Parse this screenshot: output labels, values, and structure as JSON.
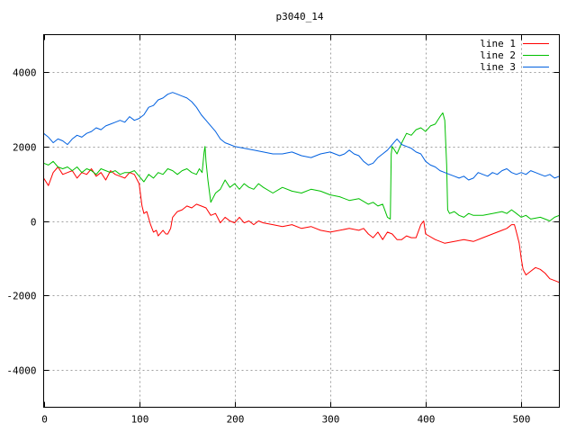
{
  "chart_data": {
    "type": "line",
    "title": "p3040_14",
    "xlabel": "",
    "ylabel": "",
    "xlim": [
      0,
      540
    ],
    "ylim": [
      -5000,
      5000
    ],
    "x_ticks": [
      0,
      100,
      200,
      300,
      400,
      500
    ],
    "y_ticks": [
      -4000,
      -2000,
      0,
      2000,
      4000
    ],
    "x_tick_labels": [
      "0",
      "100",
      "200",
      "300",
      "400",
      "500"
    ],
    "y_tick_labels": [
      "-4000",
      "-2000",
      "0",
      "2000",
      "4000"
    ],
    "grid": true,
    "legend_position": "top-right",
    "series": [
      {
        "name": "line 1",
        "color": "#ff0000",
        "points": [
          [
            0,
            1150
          ],
          [
            5,
            950
          ],
          [
            10,
            1300
          ],
          [
            15,
            1450
          ],
          [
            20,
            1250
          ],
          [
            25,
            1300
          ],
          [
            30,
            1350
          ],
          [
            35,
            1150
          ],
          [
            40,
            1300
          ],
          [
            45,
            1250
          ],
          [
            50,
            1400
          ],
          [
            55,
            1200
          ],
          [
            60,
            1300
          ],
          [
            65,
            1100
          ],
          [
            70,
            1350
          ],
          [
            75,
            1250
          ],
          [
            80,
            1200
          ],
          [
            85,
            1150
          ],
          [
            90,
            1300
          ],
          [
            95,
            1250
          ],
          [
            100,
            1000
          ],
          [
            103,
            400
          ],
          [
            105,
            200
          ],
          [
            108,
            250
          ],
          [
            112,
            -100
          ],
          [
            115,
            -300
          ],
          [
            118,
            -250
          ],
          [
            120,
            -400
          ],
          [
            125,
            -250
          ],
          [
            128,
            -350
          ],
          [
            130,
            -350
          ],
          [
            133,
            -200
          ],
          [
            135,
            100
          ],
          [
            140,
            250
          ],
          [
            145,
            300
          ],
          [
            150,
            400
          ],
          [
            155,
            350
          ],
          [
            160,
            450
          ],
          [
            165,
            400
          ],
          [
            170,
            350
          ],
          [
            175,
            150
          ],
          [
            180,
            200
          ],
          [
            185,
            -50
          ],
          [
            190,
            100
          ],
          [
            195,
            0
          ],
          [
            200,
            -50
          ],
          [
            205,
            100
          ],
          [
            210,
            -50
          ],
          [
            215,
            0
          ],
          [
            220,
            -100
          ],
          [
            225,
            0
          ],
          [
            230,
            -50
          ],
          [
            240,
            -100
          ],
          [
            250,
            -150
          ],
          [
            260,
            -100
          ],
          [
            270,
            -200
          ],
          [
            280,
            -150
          ],
          [
            290,
            -250
          ],
          [
            300,
            -300
          ],
          [
            310,
            -250
          ],
          [
            320,
            -200
          ],
          [
            330,
            -250
          ],
          [
            335,
            -200
          ],
          [
            340,
            -350
          ],
          [
            345,
            -450
          ],
          [
            350,
            -300
          ],
          [
            355,
            -500
          ],
          [
            360,
            -300
          ],
          [
            365,
            -350
          ],
          [
            370,
            -500
          ],
          [
            375,
            -500
          ],
          [
            380,
            -400
          ],
          [
            385,
            -450
          ],
          [
            390,
            -450
          ],
          [
            395,
            -100
          ],
          [
            398,
            0
          ],
          [
            400,
            -350
          ],
          [
            410,
            -500
          ],
          [
            420,
            -600
          ],
          [
            430,
            -550
          ],
          [
            440,
            -500
          ],
          [
            450,
            -550
          ],
          [
            460,
            -450
          ],
          [
            470,
            -350
          ],
          [
            480,
            -250
          ],
          [
            485,
            -200
          ],
          [
            490,
            -100
          ],
          [
            493,
            -100
          ],
          [
            495,
            -300
          ],
          [
            498,
            -600
          ],
          [
            500,
            -1000
          ],
          [
            502,
            -1300
          ],
          [
            505,
            -1450
          ],
          [
            510,
            -1350
          ],
          [
            515,
            -1250
          ],
          [
            520,
            -1300
          ],
          [
            525,
            -1400
          ],
          [
            530,
            -1550
          ],
          [
            535,
            -1600
          ],
          [
            540,
            -1650
          ]
        ]
      },
      {
        "name": "line 2",
        "color": "#00c000",
        "points": [
          [
            0,
            1550
          ],
          [
            5,
            1500
          ],
          [
            10,
            1600
          ],
          [
            15,
            1450
          ],
          [
            20,
            1400
          ],
          [
            25,
            1450
          ],
          [
            30,
            1350
          ],
          [
            35,
            1450
          ],
          [
            40,
            1300
          ],
          [
            45,
            1400
          ],
          [
            50,
            1350
          ],
          [
            55,
            1250
          ],
          [
            60,
            1400
          ],
          [
            65,
            1350
          ],
          [
            70,
            1300
          ],
          [
            75,
            1350
          ],
          [
            80,
            1250
          ],
          [
            85,
            1300
          ],
          [
            90,
            1300
          ],
          [
            95,
            1350
          ],
          [
            100,
            1200
          ],
          [
            105,
            1050
          ],
          [
            110,
            1250
          ],
          [
            115,
            1150
          ],
          [
            120,
            1300
          ],
          [
            125,
            1250
          ],
          [
            130,
            1400
          ],
          [
            135,
            1350
          ],
          [
            140,
            1250
          ],
          [
            145,
            1350
          ],
          [
            150,
            1400
          ],
          [
            155,
            1300
          ],
          [
            160,
            1250
          ],
          [
            163,
            1400
          ],
          [
            166,
            1300
          ],
          [
            168,
            1850
          ],
          [
            169,
            2000
          ],
          [
            170,
            1600
          ],
          [
            172,
            1100
          ],
          [
            175,
            500
          ],
          [
            180,
            750
          ],
          [
            185,
            850
          ],
          [
            190,
            1100
          ],
          [
            195,
            900
          ],
          [
            200,
            1000
          ],
          [
            205,
            850
          ],
          [
            210,
            1000
          ],
          [
            215,
            900
          ],
          [
            220,
            850
          ],
          [
            225,
            1000
          ],
          [
            230,
            900
          ],
          [
            240,
            750
          ],
          [
            250,
            900
          ],
          [
            260,
            800
          ],
          [
            270,
            750
          ],
          [
            280,
            850
          ],
          [
            290,
            800
          ],
          [
            300,
            700
          ],
          [
            310,
            650
          ],
          [
            320,
            550
          ],
          [
            330,
            600
          ],
          [
            340,
            450
          ],
          [
            345,
            500
          ],
          [
            350,
            400
          ],
          [
            355,
            450
          ],
          [
            360,
            100
          ],
          [
            363,
            50
          ],
          [
            364,
            1800
          ],
          [
            365,
            2000
          ],
          [
            370,
            1800
          ],
          [
            375,
            2100
          ],
          [
            380,
            2350
          ],
          [
            385,
            2300
          ],
          [
            390,
            2450
          ],
          [
            395,
            2500
          ],
          [
            400,
            2400
          ],
          [
            405,
            2550
          ],
          [
            410,
            2600
          ],
          [
            415,
            2800
          ],
          [
            418,
            2900
          ],
          [
            420,
            2700
          ],
          [
            422,
            1500
          ],
          [
            423,
            300
          ],
          [
            425,
            200
          ],
          [
            430,
            250
          ],
          [
            435,
            150
          ],
          [
            440,
            100
          ],
          [
            445,
            200
          ],
          [
            450,
            150
          ],
          [
            460,
            150
          ],
          [
            470,
            200
          ],
          [
            480,
            250
          ],
          [
            485,
            200
          ],
          [
            490,
            300
          ],
          [
            495,
            200
          ],
          [
            500,
            100
          ],
          [
            505,
            150
          ],
          [
            510,
            50
          ],
          [
            520,
            100
          ],
          [
            525,
            50
          ],
          [
            530,
            0
          ],
          [
            535,
            100
          ],
          [
            540,
            150
          ]
        ]
      },
      {
        "name": "line 3",
        "color": "#0060e0",
        "points": [
          [
            0,
            2350
          ],
          [
            5,
            2250
          ],
          [
            10,
            2100
          ],
          [
            15,
            2200
          ],
          [
            20,
            2150
          ],
          [
            25,
            2050
          ],
          [
            30,
            2200
          ],
          [
            35,
            2300
          ],
          [
            40,
            2250
          ],
          [
            45,
            2350
          ],
          [
            50,
            2400
          ],
          [
            55,
            2500
          ],
          [
            60,
            2450
          ],
          [
            65,
            2550
          ],
          [
            70,
            2600
          ],
          [
            75,
            2650
          ],
          [
            80,
            2700
          ],
          [
            85,
            2650
          ],
          [
            90,
            2800
          ],
          [
            95,
            2700
          ],
          [
            100,
            2750
          ],
          [
            105,
            2850
          ],
          [
            110,
            3050
          ],
          [
            115,
            3100
          ],
          [
            120,
            3250
          ],
          [
            125,
            3300
          ],
          [
            130,
            3400
          ],
          [
            135,
            3450
          ],
          [
            140,
            3400
          ],
          [
            145,
            3350
          ],
          [
            150,
            3300
          ],
          [
            155,
            3200
          ],
          [
            160,
            3050
          ],
          [
            165,
            2850
          ],
          [
            170,
            2700
          ],
          [
            175,
            2550
          ],
          [
            180,
            2400
          ],
          [
            185,
            2200
          ],
          [
            190,
            2100
          ],
          [
            195,
            2050
          ],
          [
            200,
            2000
          ],
          [
            210,
            1950
          ],
          [
            220,
            1900
          ],
          [
            230,
            1850
          ],
          [
            240,
            1800
          ],
          [
            250,
            1800
          ],
          [
            260,
            1850
          ],
          [
            270,
            1750
          ],
          [
            280,
            1700
          ],
          [
            290,
            1800
          ],
          [
            300,
            1850
          ],
          [
            310,
            1750
          ],
          [
            315,
            1800
          ],
          [
            320,
            1900
          ],
          [
            325,
            1800
          ],
          [
            330,
            1750
          ],
          [
            335,
            1600
          ],
          [
            340,
            1500
          ],
          [
            345,
            1550
          ],
          [
            350,
            1700
          ],
          [
            355,
            1800
          ],
          [
            360,
            1900
          ],
          [
            365,
            2050
          ],
          [
            370,
            2200
          ],
          [
            375,
            2050
          ],
          [
            380,
            2000
          ],
          [
            385,
            1950
          ],
          [
            390,
            1850
          ],
          [
            395,
            1800
          ],
          [
            400,
            1600
          ],
          [
            405,
            1500
          ],
          [
            410,
            1450
          ],
          [
            415,
            1350
          ],
          [
            420,
            1300
          ],
          [
            425,
            1250
          ],
          [
            430,
            1200
          ],
          [
            435,
            1150
          ],
          [
            440,
            1200
          ],
          [
            445,
            1100
          ],
          [
            450,
            1150
          ],
          [
            455,
            1300
          ],
          [
            460,
            1250
          ],
          [
            465,
            1200
          ],
          [
            470,
            1300
          ],
          [
            475,
            1250
          ],
          [
            480,
            1350
          ],
          [
            485,
            1400
          ],
          [
            490,
            1300
          ],
          [
            495,
            1250
          ],
          [
            500,
            1300
          ],
          [
            505,
            1250
          ],
          [
            510,
            1350
          ],
          [
            515,
            1300
          ],
          [
            520,
            1250
          ],
          [
            525,
            1200
          ],
          [
            530,
            1250
          ],
          [
            535,
            1150
          ],
          [
            540,
            1200
          ]
        ]
      }
    ]
  }
}
